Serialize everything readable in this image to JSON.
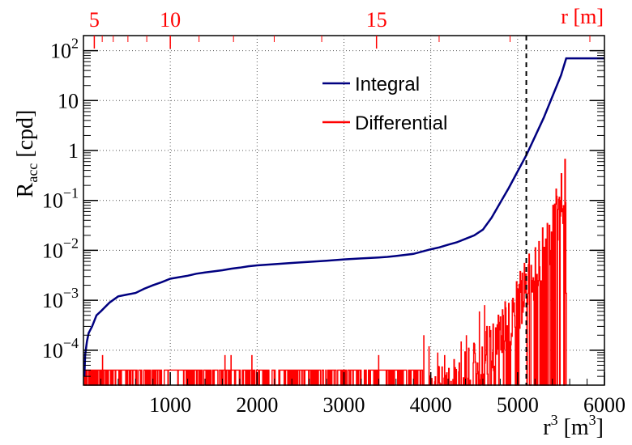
{
  "chart_data": {
    "type": "line",
    "title": "",
    "x_axis": {
      "label_main": "r",
      "label_sup": "3",
      "label_unit_open": " [m",
      "label_unit_sup": "3",
      "label_unit_close": "]",
      "range": [
        0,
        6000
      ],
      "ticks": [
        1000,
        2000,
        3000,
        4000,
        5000,
        6000
      ],
      "tick_labels": [
        "1000",
        "2000",
        "3000",
        "4000",
        "5000",
        "6000"
      ]
    },
    "top_axis": {
      "label": "r [m]",
      "ticks": [
        5,
        10,
        15
      ],
      "tick_labels": [
        "5",
        "10",
        "15"
      ],
      "color": "#ff0000"
    },
    "y_axis": {
      "label_main": "R",
      "label_sub": "acc",
      "label_unit": " [cpd]",
      "scale": "log",
      "range": [
        2e-05,
        200
      ],
      "ticks": [
        0.0001,
        0.001,
        0.01,
        0.1,
        1,
        10,
        100
      ],
      "tick_labels": [
        {
          "base": "10",
          "exp": "−4"
        },
        {
          "base": "10",
          "exp": "−3"
        },
        {
          "base": "10",
          "exp": "−2"
        },
        {
          "base": "10",
          "exp": "−1"
        },
        {
          "base": "1",
          "exp": ""
        },
        {
          "base": "10",
          "exp": ""
        },
        {
          "base": "10",
          "exp": "2"
        }
      ]
    },
    "grid": true,
    "legend_position": "top-center",
    "vertical_line": {
      "x": 5100,
      "style": "dashed"
    },
    "series": [
      {
        "name": "Integral",
        "color": "#000080",
        "points": [
          [
            10,
            3e-05
          ],
          [
            20,
            8e-05
          ],
          [
            40,
            0.00015
          ],
          [
            60,
            0.00022
          ],
          [
            100,
            0.0003
          ],
          [
            150,
            0.0005
          ],
          [
            200,
            0.0006
          ],
          [
            300,
            0.0009
          ],
          [
            400,
            0.0012
          ],
          [
            500,
            0.0013
          ],
          [
            600,
            0.0014
          ],
          [
            700,
            0.0017
          ],
          [
            800,
            0.002
          ],
          [
            900,
            0.0023
          ],
          [
            1000,
            0.0027
          ],
          [
            1100,
            0.0029
          ],
          [
            1200,
            0.0031
          ],
          [
            1300,
            0.0034
          ],
          [
            1400,
            0.0036
          ],
          [
            1500,
            0.0038
          ],
          [
            1600,
            0.004
          ],
          [
            1700,
            0.0043
          ],
          [
            1800,
            0.0045
          ],
          [
            1900,
            0.0048
          ],
          [
            2000,
            0.005
          ],
          [
            2200,
            0.0053
          ],
          [
            2400,
            0.0056
          ],
          [
            2600,
            0.0059
          ],
          [
            2800,
            0.0062
          ],
          [
            3000,
            0.0066
          ],
          [
            3200,
            0.0069
          ],
          [
            3400,
            0.0072
          ],
          [
            3500,
            0.0074
          ],
          [
            3600,
            0.0077
          ],
          [
            3800,
            0.0085
          ],
          [
            4000,
            0.0105
          ],
          [
            4100,
            0.0115
          ],
          [
            4200,
            0.013
          ],
          [
            4300,
            0.0145
          ],
          [
            4400,
            0.017
          ],
          [
            4500,
            0.02
          ],
          [
            4600,
            0.026
          ],
          [
            4700,
            0.045
          ],
          [
            4800,
            0.09
          ],
          [
            4900,
            0.18
          ],
          [
            5000,
            0.38
          ],
          [
            5100,
            0.8
          ],
          [
            5200,
            1.9
          ],
          [
            5300,
            4.5
          ],
          [
            5400,
            12
          ],
          [
            5500,
            32
          ],
          [
            5560,
            70
          ],
          [
            6000,
            70
          ]
        ]
      },
      {
        "name": "Differential",
        "color": "#ff0000",
        "envelope": [
          [
            0,
            4e-05
          ],
          [
            3900,
            4e-05
          ],
          [
            4100,
            5e-05
          ],
          [
            4300,
            7e-05
          ],
          [
            4400,
            0.0001
          ],
          [
            4500,
            0.00015
          ],
          [
            4600,
            0.00025
          ],
          [
            4700,
            0.0004
          ],
          [
            4800,
            0.0008
          ],
          [
            4900,
            0.0015
          ],
          [
            5000,
            0.003
          ],
          [
            5100,
            0.007
          ],
          [
            5200,
            0.015
          ],
          [
            5300,
            0.035
          ],
          [
            5400,
            0.1
          ],
          [
            5500,
            0.35
          ],
          [
            5550,
            0.8
          ],
          [
            5560,
            2e-05
          ]
        ],
        "spikes": [
          [
            220,
            8e-05
          ],
          [
            1630,
            8e-05
          ],
          [
            1700,
            8e-05
          ],
          [
            1940,
            8e-05
          ],
          [
            3400,
            8e-05
          ],
          [
            3920,
            0.0002
          ],
          [
            3980,
            0.00012
          ],
          [
            4080,
            9e-05
          ],
          [
            4160,
            8e-05
          ],
          [
            4350,
            0.00015
          ],
          [
            4410,
            0.0002
          ],
          [
            4560,
            0.0006
          ],
          [
            4620,
            0.0008
          ]
        ]
      }
    ]
  }
}
